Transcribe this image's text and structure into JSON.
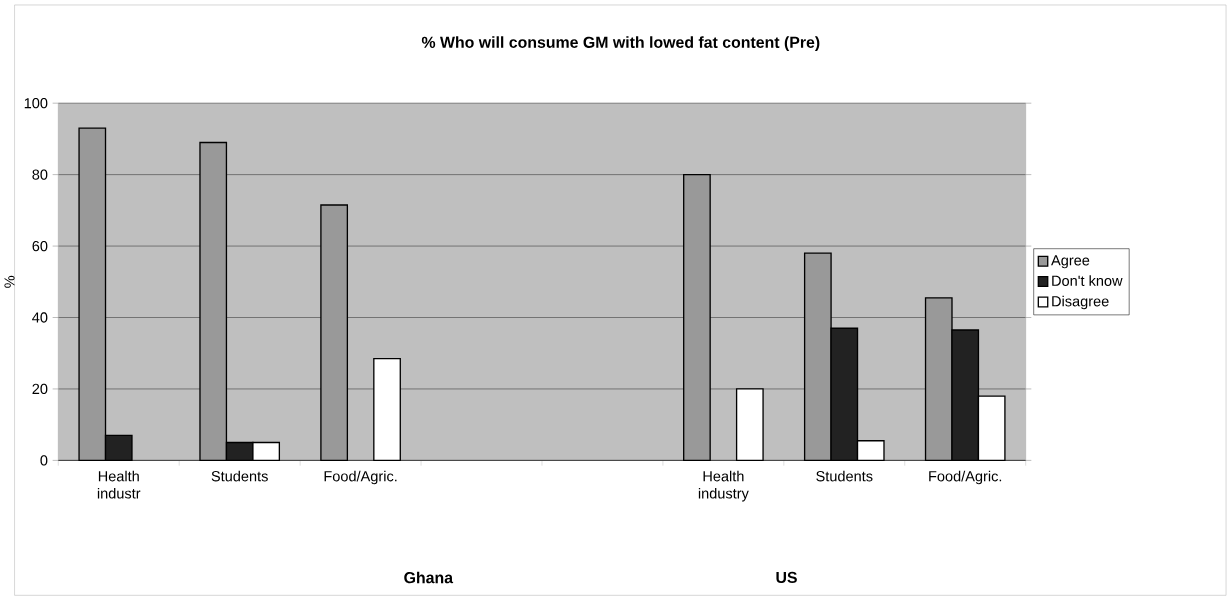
{
  "chart_data": {
    "type": "bar",
    "title": "% Who will consume GM  with lowed fat content (Pre)",
    "ylabel": "%",
    "categories": [
      "Health industr",
      "Students",
      "Food/Agric.",
      null,
      null,
      "Health industry",
      "Students",
      "Food/Agric."
    ],
    "series": [
      {
        "name": "Agree",
        "color": "#999999",
        "values": [
          93,
          89,
          71.5,
          null,
          null,
          80,
          58,
          45.5
        ]
      },
      {
        "name": "Don't know",
        "color": "#222222",
        "values": [
          7,
          5,
          null,
          null,
          null,
          null,
          37,
          36.5
        ]
      },
      {
        "name": "Disagree",
        "color": "#ffffff",
        "values": [
          null,
          5,
          28.5,
          null,
          null,
          20,
          5.5,
          18
        ]
      }
    ],
    "ylim": [
      0,
      100
    ],
    "yticks": [
      0,
      20,
      40,
      60,
      80,
      100
    ],
    "grid": "y",
    "legend": "right",
    "annotations": [
      "Ghana",
      "US"
    ]
  }
}
